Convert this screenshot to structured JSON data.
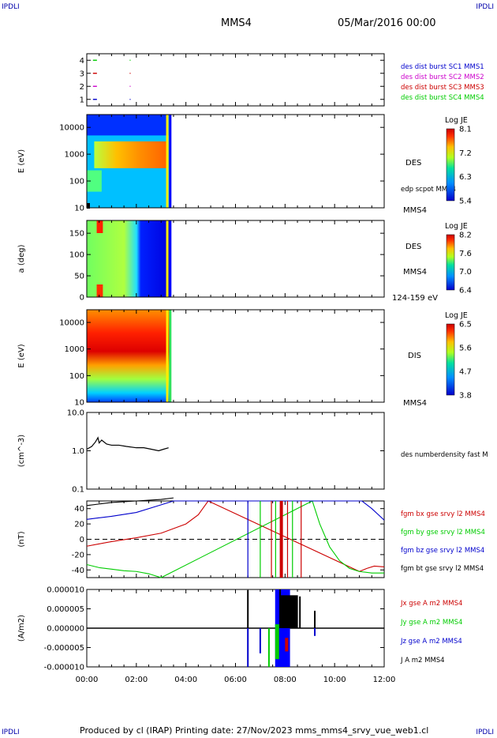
{
  "corners": {
    "tl": "IPDLI",
    "tr": "IPDLI",
    "bl": "IPDLI",
    "br": "IPDLI"
  },
  "header": {
    "spacecraft": "MMS4",
    "datetime": "05/Mar/2016 00:00"
  },
  "footer": {
    "text": "Produced by cl (IRAP)   Printing date: 27/Nov/2023   mms_mms4_srvy_vue_web1.cl"
  },
  "x_axis": {
    "ticks": [
      "00:00",
      "02:00",
      "04:00",
      "06:00",
      "08:00",
      "10:00",
      "12:00"
    ],
    "range_hours": [
      0,
      12
    ]
  },
  "chart_data": [
    {
      "type": "scatter",
      "panel": "burst availability",
      "yticks": [
        "4",
        "3",
        "2",
        "1"
      ],
      "ylim": [
        0.5,
        4.5
      ],
      "legend": [
        {
          "name": "des dist burst SC1 MMS1",
          "color": "#0000cc"
        },
        {
          "name": "des dist burst SC2 MMS2",
          "color": "#cc00cc"
        },
        {
          "name": "des dist burst SC3 MMS3",
          "color": "#cc0000"
        },
        {
          "name": "des dist burst SC4 MMS4",
          "color": "#00cc00"
        }
      ],
      "series": [
        {
          "name": "des dist burst SC4 MMS4",
          "y": 4,
          "x": [
            0.33,
            1.75
          ]
        },
        {
          "name": "des dist burst SC3 MMS3",
          "y": 3,
          "x": [
            0.33,
            1.75
          ]
        },
        {
          "name": "des dist burst SC2 MMS2",
          "y": 2,
          "x": [
            0.33,
            1.75
          ]
        },
        {
          "name": "des dist burst SC1 MMS1",
          "y": 1,
          "x": [
            0.33,
            1.75
          ]
        }
      ]
    },
    {
      "type": "heatmap",
      "panel": "DES energy spectrogram",
      "ylabel": "E (eV)",
      "yscale": "log",
      "yticks": [
        "10000",
        "1000",
        "100",
        "10"
      ],
      "right_labels": [
        "DES",
        "edp scpot MMS4",
        "MMS4"
      ],
      "colorbar": {
        "title": "Log JE",
        "ticks": [
          "8.1",
          "7.2",
          "6.3",
          "5.4"
        ]
      },
      "data_extent_hours": [
        0,
        3.35
      ]
    },
    {
      "type": "heatmap",
      "panel": "DES pitch angle",
      "ylabel": "a (deg)",
      "yticks": [
        "150",
        "100",
        "50",
        "0"
      ],
      "right_labels": [
        "DES",
        "MMS4",
        "124-159 eV"
      ],
      "colorbar": {
        "title": "Log JE",
        "ticks": [
          "8.2",
          "7.6",
          "7.0",
          "6.4"
        ]
      },
      "data_extent_hours": [
        0,
        3.35
      ]
    },
    {
      "type": "heatmap",
      "panel": "DIS energy spectrogram",
      "ylabel": "E (eV)",
      "yscale": "log",
      "yticks": [
        "10000",
        "1000",
        "100",
        "10"
      ],
      "right_labels": [
        "DIS",
        "MMS4"
      ],
      "colorbar": {
        "title": "Log JE",
        "ticks": [
          "6.5",
          "5.6",
          "4.7",
          "3.8"
        ]
      },
      "data_extent_hours": [
        0,
        3.35
      ]
    },
    {
      "type": "line",
      "panel": "density",
      "ylabel": "(cm^-3)",
      "yscale": "log",
      "yticks": [
        "10.0",
        "1.0",
        "0.1"
      ],
      "series": [
        {
          "name": "des numberdensity fast M",
          "color": "#000000",
          "x": [
            0,
            0.2,
            0.35,
            0.45,
            0.5,
            0.6,
            0.8,
            1.0,
            1.3,
            1.6,
            2.0,
            2.3,
            2.6,
            2.9,
            3.1,
            3.3
          ],
          "y": [
            1.1,
            1.3,
            1.7,
            2.2,
            1.6,
            1.9,
            1.5,
            1.4,
            1.4,
            1.3,
            1.2,
            1.2,
            1.1,
            1.0,
            1.1,
            1.2
          ]
        }
      ]
    },
    {
      "type": "line",
      "panel": "magnetic field",
      "ylabel": "(nT)",
      "yticks": [
        "40",
        "20",
        "0",
        "-20",
        "-40"
      ],
      "ylim": [
        -50,
        50
      ],
      "series": [
        {
          "name": "fgm bx gse srvy l2 MMS4",
          "color": "#cc0000",
          "x": [
            0,
            0.5,
            1.0,
            2.0,
            3.0,
            4.0,
            4.5,
            4.9,
            11.0,
            11.3,
            11.6,
            12.0
          ],
          "y": [
            -9,
            -6,
            -3,
            2,
            8,
            20,
            32,
            50,
            -42,
            -38,
            -35,
            -36
          ]
        },
        {
          "name": "fgm by gse srvy l2 MMS4",
          "color": "#00cc00",
          "x": [
            0,
            0.5,
            1.0,
            1.5,
            2.0,
            2.5,
            3.0,
            9.1,
            9.4,
            9.8,
            10.2,
            10.6,
            11.0,
            11.5,
            12.0
          ],
          "y": [
            -33,
            -37,
            -39,
            -41,
            -42,
            -45,
            -50,
            50,
            20,
            -10,
            -28,
            -38,
            -42,
            -44,
            -44
          ]
        },
        {
          "name": "fgm bz gse srvy l2 MMS4",
          "color": "#0000cc",
          "x": [
            0,
            0.5,
            1.0,
            2.0,
            3.0,
            3.5,
            11.1,
            11.5,
            12.0
          ],
          "y": [
            26,
            28,
            30,
            35,
            45,
            50,
            50,
            40,
            25
          ]
        },
        {
          "name": "fgm bt gse srvy l2 MMS4",
          "color": "#000000",
          "x": [
            0,
            0.5,
            1.0,
            2.0,
            3.0,
            3.5
          ],
          "y": [
            44,
            46,
            48,
            50,
            52,
            54
          ]
        }
      ],
      "vertical_spikes": [
        {
          "x": 6.5,
          "color": "#0000cc"
        },
        {
          "x": 7.0,
          "color": "#00cc00"
        },
        {
          "x": 7.45,
          "color": "#cc0000"
        },
        {
          "x": 7.62,
          "color": "#00cc00"
        },
        {
          "x": 7.85,
          "color": "#cc0000",
          "bold": true
        },
        {
          "x": 8.1,
          "color": "#cc0000"
        },
        {
          "x": 8.3,
          "color": "#00cc00"
        },
        {
          "x": 8.65,
          "color": "#cc0000"
        }
      ]
    },
    {
      "type": "line",
      "panel": "current density",
      "ylabel": "(A/m2)",
      "yticks": [
        "0.000010",
        "0.000005",
        "0.000000",
        "-0.000005",
        "-0.000010"
      ],
      "ylim": [
        -1e-05,
        1e-05
      ],
      "legend": [
        {
          "name": "Jx gse A m2 MMS4",
          "color": "#cc0000"
        },
        {
          "name": "Jy gse A m2 MMS4",
          "color": "#00cc00"
        },
        {
          "name": "Jz gse A m2 MMS4",
          "color": "#0000cc"
        },
        {
          "name": "J A m2 MMS4",
          "color": "#000000"
        }
      ],
      "spikes": [
        {
          "x": 6.5,
          "y": 9.8e-06,
          "color": "#000000"
        },
        {
          "x": 6.5,
          "y": -1e-05,
          "color": "#0000cc"
        },
        {
          "x": 7.0,
          "y": -6.5e-06,
          "color": "#0000cc"
        },
        {
          "x": 7.35,
          "y": -1e-05,
          "color": "#00cc00"
        },
        {
          "x": 7.8,
          "y": 1e-05,
          "color": "#000000"
        },
        {
          "x": 8.6,
          "y": 8.2e-06,
          "color": "#000000"
        },
        {
          "x": 9.2,
          "y": 4.5e-06,
          "color": "#000000"
        },
        {
          "x": 9.2,
          "y": -2e-06,
          "color": "#0000cc"
        }
      ],
      "dense_band_hours": [
        7.6,
        8.2
      ]
    }
  ]
}
